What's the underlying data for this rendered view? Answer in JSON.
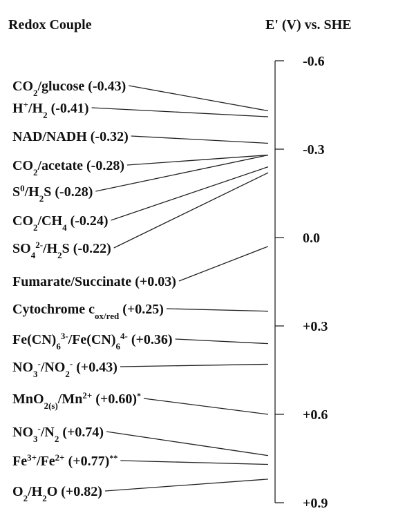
{
  "header": {
    "left": "Redox Couple",
    "right": "E' (V) vs. SHE"
  },
  "axis": {
    "lim": [
      -0.6,
      0.9
    ],
    "ticks": [
      -0.6,
      -0.3,
      {
        "value": 0,
        "label": "0.0"
      },
      {
        "value": 0.3,
        "label": "+0.3"
      },
      {
        "value": 0.6,
        "label": "+0.6"
      },
      {
        "value": 0.9,
        "label": "+0.9"
      }
    ]
  },
  "couples": [
    {
      "name": [
        {
          "t": "CO"
        },
        {
          "t": "2",
          "s": "sub"
        },
        {
          "t": "/glucose "
        }
      ],
      "value": -0.43,
      "value_label": "(-0.43)"
    },
    {
      "name": [
        {
          "t": "H"
        },
        {
          "t": "+",
          "s": "sup"
        },
        {
          "t": "/H"
        },
        {
          "t": "2",
          "s": "sub"
        },
        {
          "t": " "
        }
      ],
      "value": -0.41,
      "value_label": "(-0.41)"
    },
    {
      "name": [
        {
          "t": "NAD/NADH "
        }
      ],
      "value": -0.32,
      "value_label": "(-0.32)"
    },
    {
      "name": [
        {
          "t": "CO"
        },
        {
          "t": "2",
          "s": "sub"
        },
        {
          "t": "/acetate "
        }
      ],
      "value": -0.28,
      "value_label": "(-0.28)"
    },
    {
      "name": [
        {
          "t": "S"
        },
        {
          "t": "0",
          "s": "sup"
        },
        {
          "t": "/H"
        },
        {
          "t": "2",
          "s": "sub"
        },
        {
          "t": "S "
        }
      ],
      "value": -0.28,
      "value_label": "(-0.28)"
    },
    {
      "name": [
        {
          "t": "CO"
        },
        {
          "t": "2",
          "s": "sub"
        },
        {
          "t": "/CH"
        },
        {
          "t": "4",
          "s": "sub"
        },
        {
          "t": " "
        }
      ],
      "value": -0.24,
      "value_label": "(-0.24)"
    },
    {
      "name": [
        {
          "t": "SO"
        },
        {
          "t": "4",
          "s": "sub"
        },
        {
          "t": "2-",
          "s": "sup"
        },
        {
          "t": "/H"
        },
        {
          "t": "2",
          "s": "sub"
        },
        {
          "t": "S "
        }
      ],
      "value": -0.22,
      "value_label": "(-0.22)"
    },
    {
      "name": [
        {
          "t": "Fumarate/Succinate "
        }
      ],
      "value": 0.03,
      "value_label": "(+0.03)"
    },
    {
      "name": [
        {
          "t": "Cytochrome c"
        },
        {
          "t": "ox/red",
          "s": "sub"
        },
        {
          "t": " "
        }
      ],
      "value": 0.25,
      "value_label": "(+0.25)"
    },
    {
      "name": [
        {
          "t": "Fe(CN)"
        },
        {
          "t": "6",
          "s": "sub"
        },
        {
          "t": "3-",
          "s": "sup"
        },
        {
          "t": "/Fe(CN)"
        },
        {
          "t": "6",
          "s": "sub"
        },
        {
          "t": "4-",
          "s": "sup"
        },
        {
          "t": " "
        }
      ],
      "value": 0.36,
      "value_label": "(+0.36)"
    },
    {
      "name": [
        {
          "t": "NO"
        },
        {
          "t": "3",
          "s": "sub"
        },
        {
          "t": "-",
          "s": "sup"
        },
        {
          "t": "/NO"
        },
        {
          "t": "2",
          "s": "sub"
        },
        {
          "t": "-",
          "s": "sup"
        },
        {
          "t": " "
        }
      ],
      "value": 0.43,
      "value_label": "(+0.43)"
    },
    {
      "name": [
        {
          "t": "MnO"
        },
        {
          "t": "2(s)",
          "s": "sub"
        },
        {
          "t": "/Mn"
        },
        {
          "t": "2+",
          "s": "sup"
        },
        {
          "t": " "
        }
      ],
      "value": 0.6,
      "value_label": "(+0.60)",
      "note": "*"
    },
    {
      "name": [
        {
          "t": "NO"
        },
        {
          "t": "3",
          "s": "sub"
        },
        {
          "t": "-",
          "s": "sup"
        },
        {
          "t": "/N"
        },
        {
          "t": "2",
          "s": "sub"
        },
        {
          "t": " "
        }
      ],
      "value": 0.74,
      "value_label": "(+0.74)"
    },
    {
      "name": [
        {
          "t": "Fe"
        },
        {
          "t": "3+",
          "s": "sup"
        },
        {
          "t": "/Fe"
        },
        {
          "t": "2+",
          "s": "sup"
        },
        {
          "t": " "
        }
      ],
      "value": 0.77,
      "value_label": "(+0.77)",
      "note": "**"
    },
    {
      "name": [
        {
          "t": "O"
        },
        {
          "t": "2",
          "s": "sub"
        },
        {
          "t": "/H"
        },
        {
          "t": "2",
          "s": "sub"
        },
        {
          "t": "O "
        }
      ],
      "value": 0.82,
      "value_label": "(+0.82)"
    }
  ]
}
